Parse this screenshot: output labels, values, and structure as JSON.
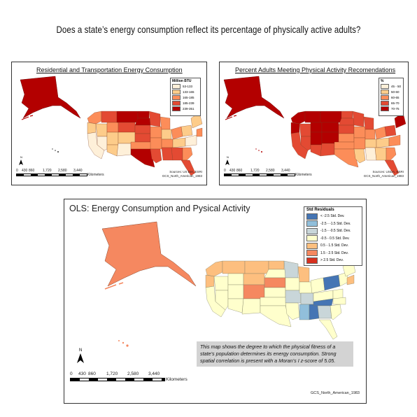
{
  "title": "Does a state’s energy consumption reflect its percentage of physically active adults?",
  "colors": {
    "energy": [
      "#fef0d9",
      "#fdcc8a",
      "#fc8d59",
      "#e34a33",
      "#b30000"
    ],
    "activity": [
      "#fef0d9",
      "#fdcc8a",
      "#fc8d59",
      "#e34a33",
      "#b30000"
    ],
    "residuals": [
      "#4575b4",
      "#91bfdb",
      "#c9d6d9",
      "#ffffcc",
      "#fdbf7f",
      "#f58860",
      "#d7301f"
    ]
  },
  "map1": {
    "title": "Residential and Transportation Energy Consumption",
    "legend_title": "Million BTU",
    "legend_items": [
      "53-133",
      "133-165",
      "165-185",
      "185-239",
      "239-351"
    ],
    "source": "Sources: US EIA, ESRI",
    "projection": "GCS_North_American_1983",
    "scale_ticks": [
      "0",
      "430",
      "860",
      "1,720",
      "2,580",
      "3,440"
    ],
    "scale_unit": "Kilometers",
    "north": "N"
  },
  "map2": {
    "title": "Percent Adults Meeting Physical Activity Recomendations",
    "legend_title": "%",
    "legend_items": [
      "45 - 50",
      "50-60",
      "60-65",
      "65-70",
      "70-75"
    ],
    "source": "Sources: USDA, ESRI",
    "projection": "GCS_North_American_1983",
    "scale_ticks": [
      "0",
      "430",
      "860",
      "1,720",
      "2,580",
      "3,440"
    ],
    "scale_unit": "Kilometers",
    "north": "N"
  },
  "map3": {
    "title": "OLS: Energy Consumption and Pysical Activity",
    "legend_title": "Std Residuals",
    "legend_items": [
      "< -2.5 Std. Dev.",
      "-2.5 - -1.5 Std. Dev.",
      "-1.5 - -0.5 Std. Dev.",
      "-0.5 - 0.5 Std. Dev.",
      "0.5 - 1.5 Std. Dev.",
      "1.5 - 2.5 Std. Dev.",
      "> 2.5 Std. Dev."
    ],
    "note": "This map shows the degree to which the physical fitness of a state’s population determines its energy consumption.  Strong spatial correlation is present with a Moran’s I z-score of 5.05.",
    "projection": "GCS_North_American_1983",
    "scale_ticks": [
      "0",
      "430",
      "860",
      "1,720",
      "2,580",
      "3,440"
    ],
    "scale_unit": "Kilometers",
    "north": "N"
  }
}
